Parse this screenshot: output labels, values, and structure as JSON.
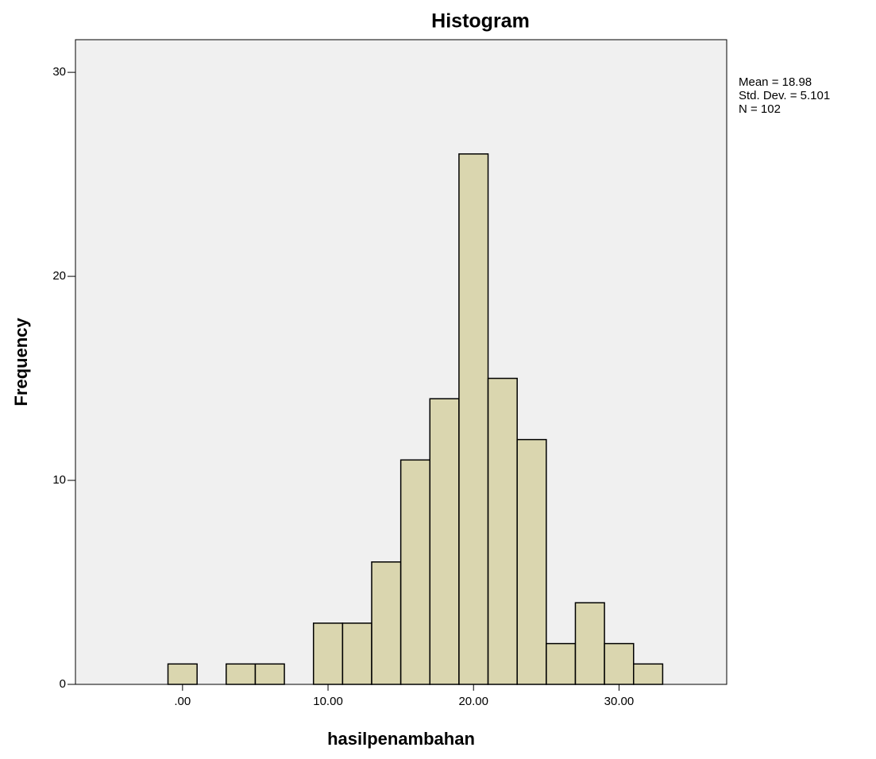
{
  "chart_data": {
    "type": "histogram",
    "title": "Histogram",
    "x_label": "hasilpenambahan",
    "y_label": "Frequency",
    "annotations": [
      "Mean = 18.98",
      "Std. Dev. = 5.101",
      "N = 102"
    ],
    "bins": [
      -1,
      1,
      3,
      5,
      7,
      9,
      11,
      13,
      15,
      17,
      19,
      21,
      23,
      25,
      27,
      29,
      31,
      33
    ],
    "values": [
      1,
      0,
      1,
      1,
      0,
      3,
      3,
      6,
      11,
      14,
      26,
      15,
      12,
      2,
      4,
      2,
      1
    ],
    "color": "#d6d1a3",
    "xlim": [
      -7.36,
      37.4
    ],
    "ylim": [
      0,
      31.6
    ],
    "xticks": [
      {
        "value": 0,
        "label": ".00"
      },
      {
        "value": 10,
        "label": "10.00"
      },
      {
        "value": 20,
        "label": "20.00"
      },
      {
        "value": 30,
        "label": "30.00"
      }
    ],
    "yticks": [
      0,
      10,
      20,
      30
    ]
  }
}
